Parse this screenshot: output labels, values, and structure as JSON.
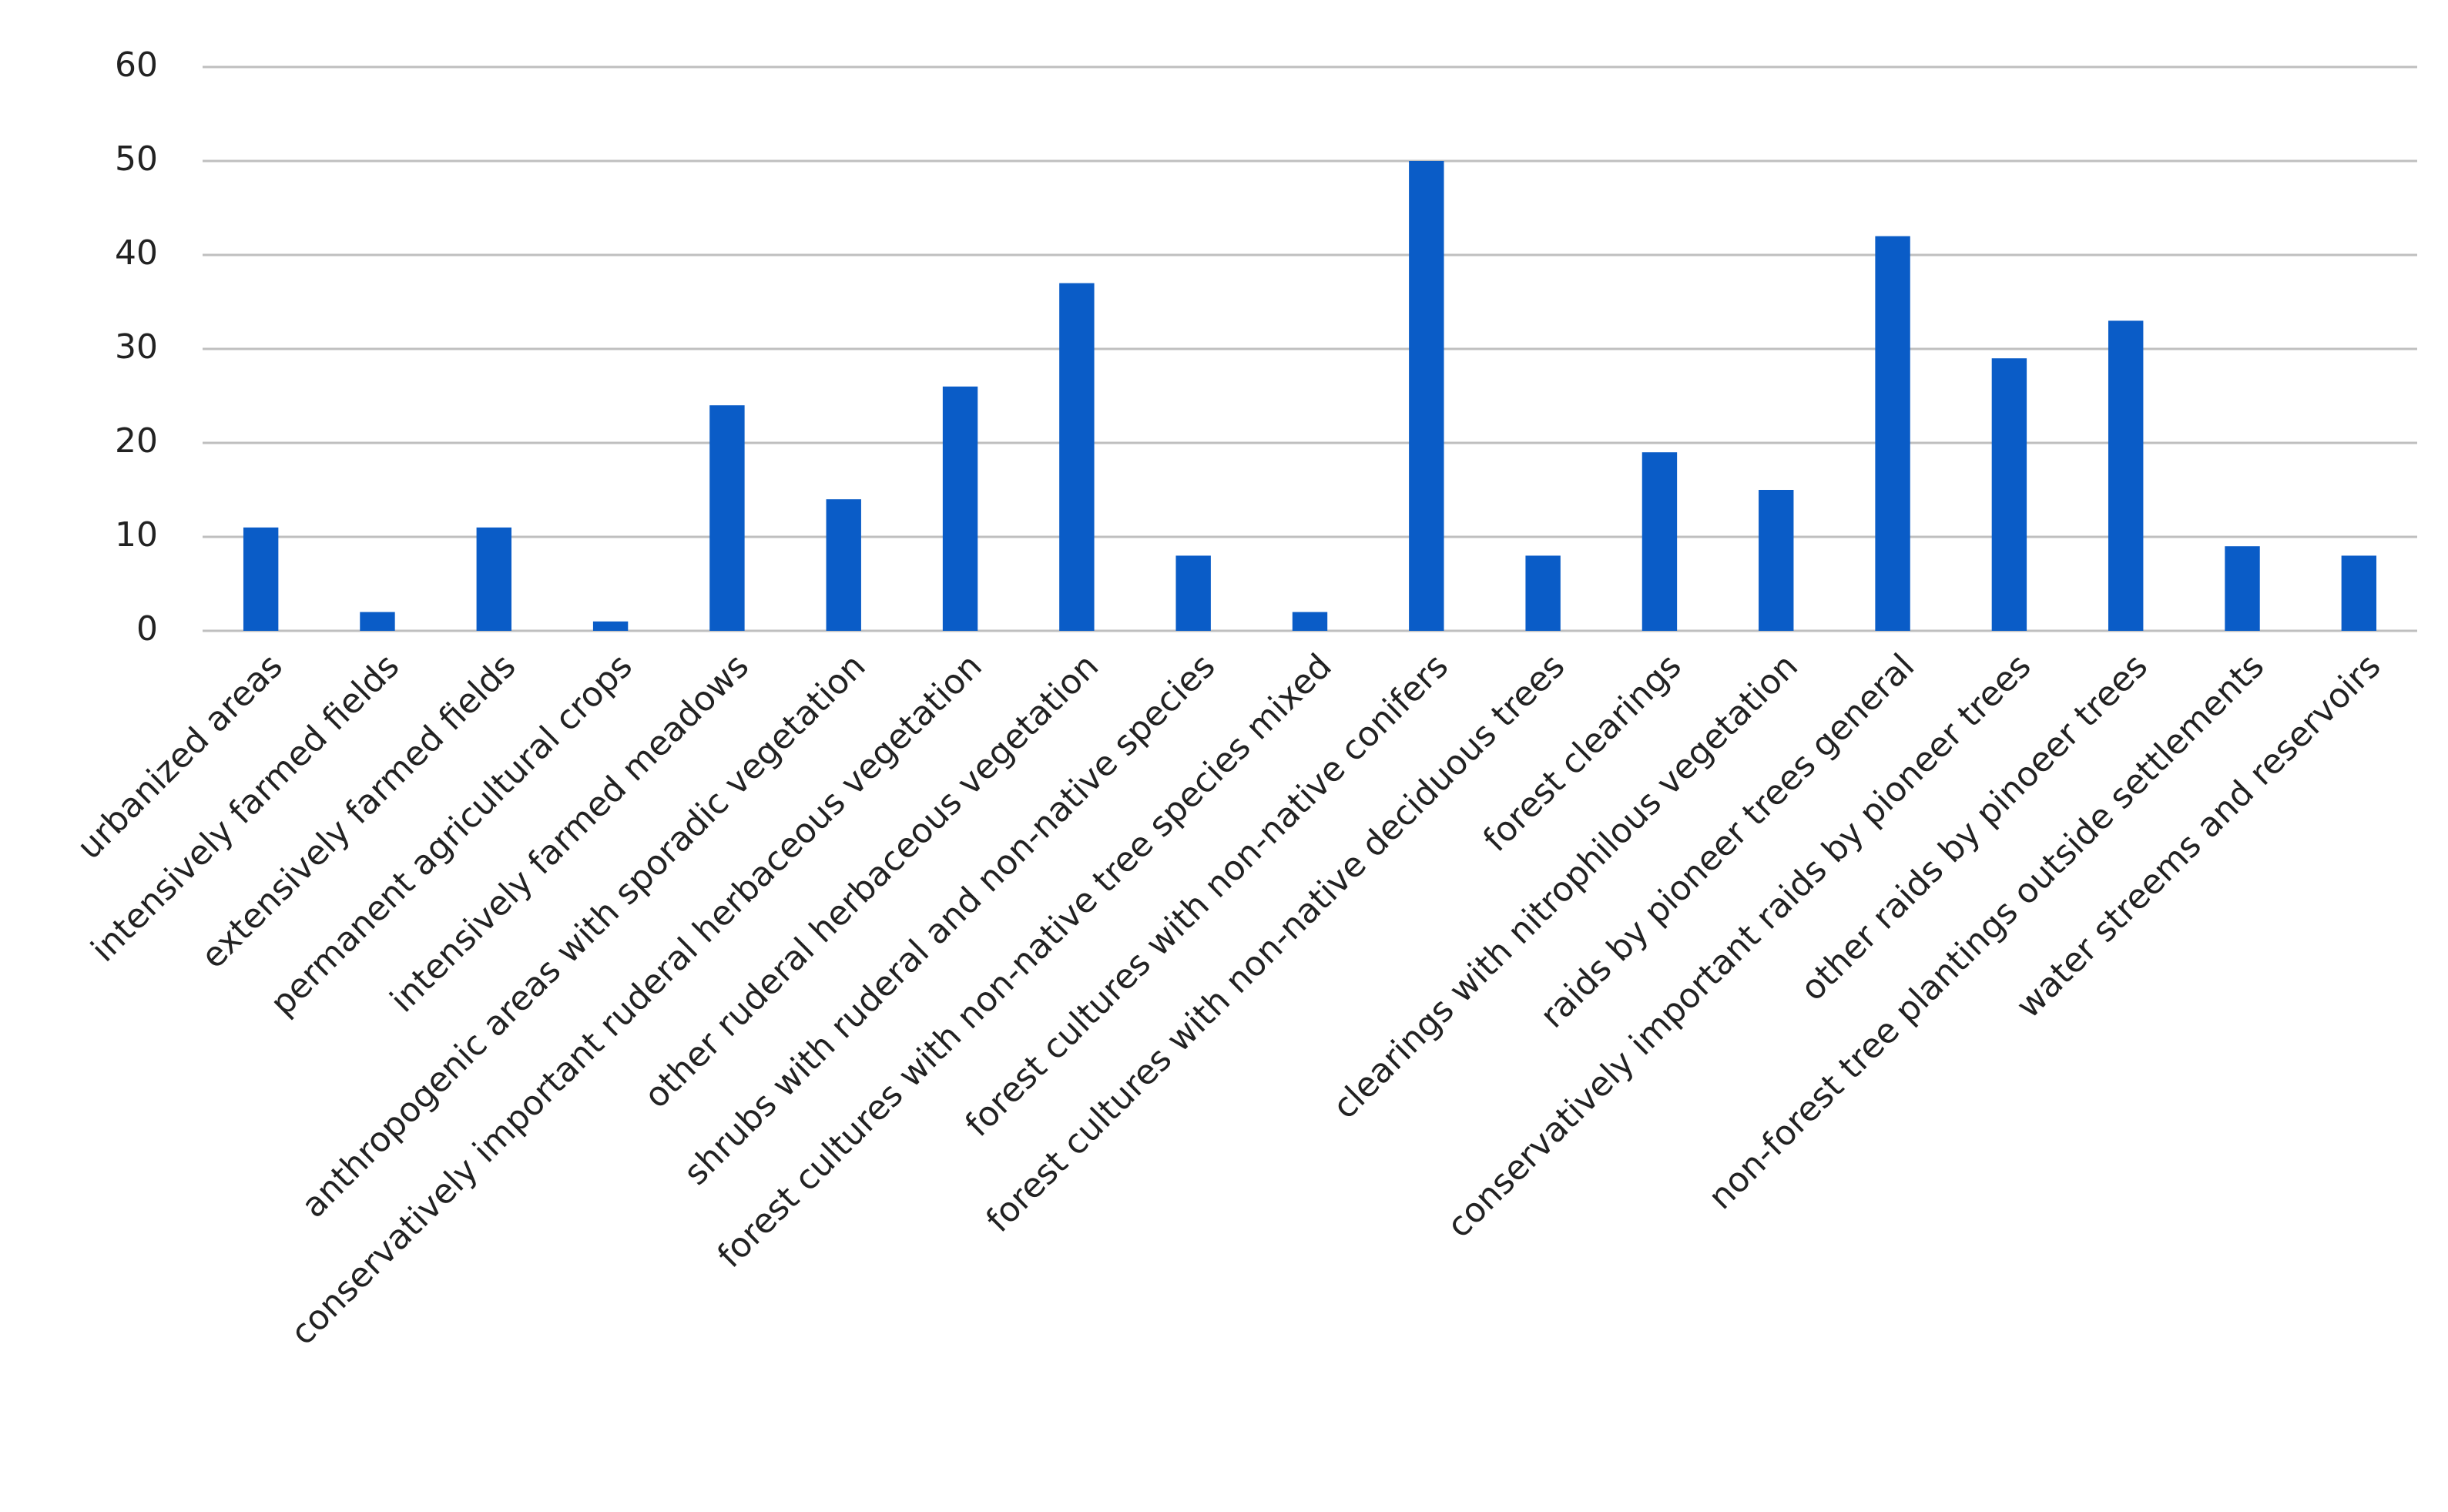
{
  "chart_data": {
    "type": "bar",
    "categories": [
      "urbanized areas",
      "intensively farmed fields",
      "extensively farmed fields",
      "permanent agricultural crops",
      "intensively farmed meadows",
      "anthropogenic areas with sporadic vegetation",
      "conservatively important ruderal herbaceous vegetation",
      "other ruderal herbaceous vegetation",
      "shrubs with ruderal and non-native species",
      "forest cultures with non-native tree species mixed",
      "forest cultures with non-native conifers",
      "forest cultures with non-native deciduous trees",
      "forest clearings",
      "clearings with nitrophilous vegetation",
      "raids by pioneer trees general",
      "conservatively important raids by pioneer trees",
      "other raids by pinoeer trees",
      "non-forest tree plantings outside settlements",
      "water streems and reservoirs"
    ],
    "values": [
      11,
      2,
      11,
      1,
      24,
      14,
      26,
      37,
      8,
      2,
      50,
      8,
      19,
      15,
      42,
      29,
      33,
      9,
      8
    ],
    "color": "#0a5cc7",
    "ylim": [
      0,
      60
    ],
    "yticks": [
      0,
      10,
      20,
      30,
      40,
      50,
      60
    ],
    "grid": true
  }
}
